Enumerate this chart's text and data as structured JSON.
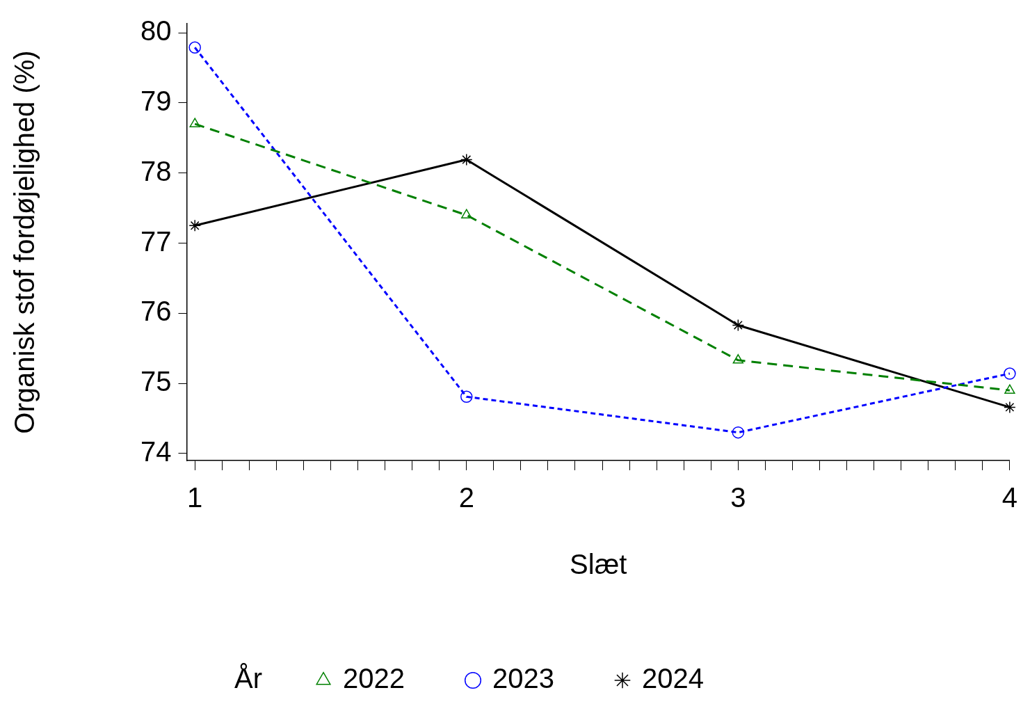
{
  "chart_data": {
    "type": "line",
    "xlabel": "Slæt",
    "ylabel": "Organisk stof fordøjelighed (%)",
    "legend_title": "År",
    "legend": "bottom",
    "grid": false,
    "x": [
      1,
      2,
      3,
      4
    ],
    "xlim": [
      0.97,
      4
    ],
    "xticks": [
      1,
      {
        "value": 1.1,
        "label": null
      },
      {
        "value": 1.2,
        "label": null
      },
      {
        "value": 1.3,
        "label": null
      },
      {
        "value": 1.4,
        "label": null
      },
      {
        "value": 1.5,
        "label": null
      },
      {
        "value": 1.6,
        "label": null
      },
      {
        "value": 1.7,
        "label": null
      },
      {
        "value": 1.8,
        "label": null
      },
      {
        "value": 1.9,
        "label": null
      },
      2,
      {
        "value": 2.1,
        "label": null
      },
      {
        "value": 2.2,
        "label": null
      },
      {
        "value": 2.3,
        "label": null
      },
      {
        "value": 2.4,
        "label": null
      },
      {
        "value": 2.5,
        "label": null
      },
      {
        "value": 2.6,
        "label": null
      },
      {
        "value": 2.7,
        "label": null
      },
      {
        "value": 2.8,
        "label": null
      },
      {
        "value": 2.9,
        "label": null
      },
      3,
      {
        "value": 3.1,
        "label": null
      },
      {
        "value": 3.2,
        "label": null
      },
      {
        "value": 3.3,
        "label": null
      },
      {
        "value": 3.4,
        "label": null
      },
      {
        "value": 3.5,
        "label": null
      },
      {
        "value": 3.6,
        "label": null
      },
      {
        "value": 3.7,
        "label": null
      },
      {
        "value": 3.8,
        "label": null
      },
      {
        "value": 3.9,
        "label": null
      },
      4
    ],
    "ylim": [
      73.9,
      80.13
    ],
    "yticks": [
      74,
      75,
      76,
      77,
      78,
      79,
      80
    ],
    "series": [
      {
        "name": "2022",
        "color": "#008000",
        "marker": "triangle",
        "line_style": "dashed",
        "values": [
          78.7,
          77.4,
          75.33,
          74.9
        ]
      },
      {
        "name": "2023",
        "color": "#0000ff",
        "marker": "circle",
        "line_style": "dotted",
        "values": [
          79.79,
          74.81,
          74.3,
          75.14
        ]
      },
      {
        "name": "2024",
        "color": "#000000",
        "marker": "cross",
        "line_style": "solid",
        "values": [
          77.25,
          78.19,
          75.83,
          74.66
        ]
      }
    ]
  }
}
